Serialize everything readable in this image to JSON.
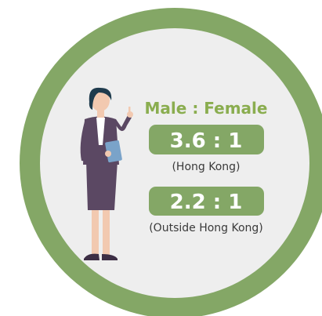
{
  "heading": "Male : Female",
  "stats": [
    {
      "ratio": "3.6 : 1",
      "region": "(Hong Kong)"
    },
    {
      "ratio": "2.2 : 1",
      "region": "(Outside Hong Kong)"
    }
  ]
}
